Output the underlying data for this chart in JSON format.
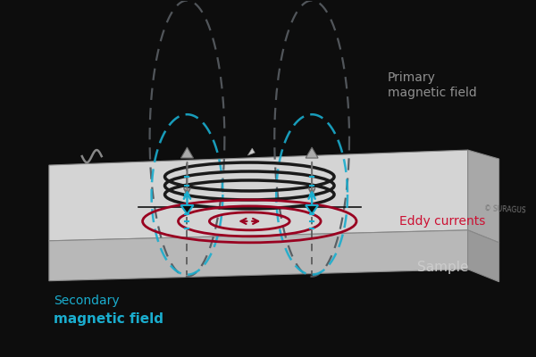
{
  "bg_color": "#0d0d0d",
  "plate_top_color": "#d4d4d4",
  "plate_front_color": "#b8b8b8",
  "plate_side_color": "#a8a8a8",
  "plate_edge_color": "#888888",
  "coil_color": "#1a1a1a",
  "eddy_color": "#990020",
  "secondary_color": "#1aadce",
  "primary_color": "#555a5f",
  "arrow_gray": "#707070",
  "text_primary_color": "#909090",
  "text_secondary_color": "#1aadce",
  "text_eddy_color": "#cc1133",
  "text_sample_color": "#cccccc",
  "text_copyright_color": "#777777",
  "label_primary": "Primary\nmagnetic field",
  "label_secondary_1": "Secondary",
  "label_secondary_2": "magnetic field",
  "label_eddy": "Eddy currents",
  "label_sample": "Sample",
  "copyright": "© SURAGUS"
}
